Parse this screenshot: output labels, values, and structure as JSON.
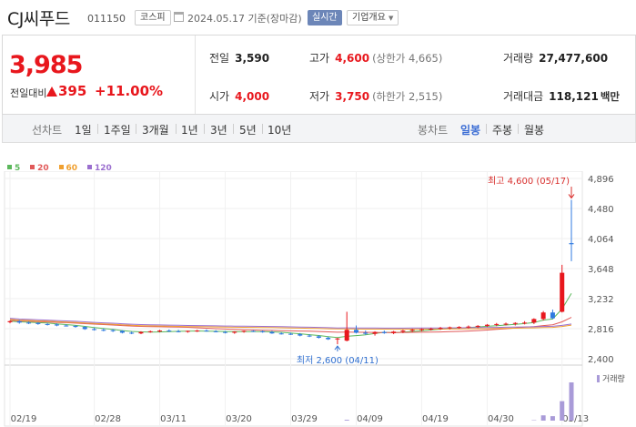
{
  "header": {
    "name": "CJ씨푸드",
    "code": "011150",
    "market": "코스피",
    "date": "2024.05.17 기준(장마감)",
    "realtime": "실시간",
    "company_info": "기업개요"
  },
  "quote": {
    "price": "3,985",
    "prev_label": "전일대비",
    "change": "395",
    "change_pct": "+11.00%",
    "fields": {
      "prev_close": {
        "label": "전일",
        "value": "3,590"
      },
      "open": {
        "label": "시가",
        "value": "4,000"
      },
      "high": {
        "label": "고가",
        "value": "4,600",
        "sub": "(상한가 4,665)"
      },
      "low": {
        "label": "저가",
        "value": "3,750",
        "sub": "(하한가 2,515)"
      },
      "volume": {
        "label": "거래량",
        "value": "27,477,600"
      },
      "amount": {
        "label": "거래대금",
        "value": "118,121",
        "unit": "백만"
      }
    }
  },
  "tabs": {
    "line_label": "선차트",
    "line_periods": [
      "1일",
      "1주일",
      "3개월",
      "1년",
      "3년",
      "5년",
      "10년"
    ],
    "candle_label": "봉차트",
    "candle_periods": [
      "일봉",
      "주봉",
      "월봉"
    ],
    "candle_active": "일봉"
  },
  "colors": {
    "up": "#e8171d",
    "down": "#2f7ae0",
    "ma5": "#5cb85c",
    "ma20": "#e15a5a",
    "ma60": "#f0a030",
    "ma120": "#9b6fcf",
    "volume": "#a99bd8"
  },
  "chart_data": {
    "type": "candlestick",
    "legend": [
      "5",
      "20",
      "60",
      "120"
    ],
    "y_ticks": [
      "4,896",
      "4,480",
      "4,064",
      "3,648",
      "3,232",
      "2,816",
      "2,400"
    ],
    "ylim": [
      2400,
      4896
    ],
    "x_ticks": [
      "02/19",
      "02/28",
      "03/11",
      "03/20",
      "03/29",
      "04/09",
      "04/19",
      "04/30",
      "05/13"
    ],
    "high_annotation": "최고 4,600 (05/17)",
    "low_annotation": "최저 2,600 (04/11)",
    "volume_label": "거래량",
    "candles": [
      [
        2905,
        2930,
        2890,
        2920
      ],
      [
        2920,
        2935,
        2885,
        2900
      ],
      [
        2900,
        2915,
        2880,
        2895
      ],
      [
        2895,
        2905,
        2870,
        2880
      ],
      [
        2880,
        2895,
        2860,
        2875
      ],
      [
        2875,
        2890,
        2850,
        2860
      ],
      [
        2860,
        2875,
        2845,
        2855
      ],
      [
        2855,
        2860,
        2830,
        2840
      ],
      [
        2840,
        2850,
        2800,
        2810
      ],
      [
        2810,
        2830,
        2790,
        2800
      ],
      [
        2800,
        2820,
        2780,
        2795
      ],
      [
        2795,
        2810,
        2770,
        2785
      ],
      [
        2785,
        2795,
        2750,
        2760
      ],
      [
        2760,
        2775,
        2740,
        2750
      ],
      [
        2750,
        2780,
        2740,
        2770
      ],
      [
        2770,
        2790,
        2760,
        2780
      ],
      [
        2780,
        2800,
        2765,
        2790
      ],
      [
        2790,
        2805,
        2770,
        2780
      ],
      [
        2780,
        2800,
        2765,
        2775
      ],
      [
        2775,
        2790,
        2760,
        2785
      ],
      [
        2785,
        2800,
        2770,
        2790
      ],
      [
        2790,
        2805,
        2775,
        2780
      ],
      [
        2780,
        2795,
        2765,
        2770
      ],
      [
        2770,
        2785,
        2750,
        2760
      ],
      [
        2760,
        2780,
        2745,
        2775
      ],
      [
        2775,
        2790,
        2760,
        2785
      ],
      [
        2785,
        2795,
        2770,
        2780
      ],
      [
        2780,
        2790,
        2760,
        2770
      ],
      [
        2770,
        2785,
        2745,
        2750
      ],
      [
        2750,
        2765,
        2735,
        2745
      ],
      [
        2745,
        2760,
        2730,
        2740
      ],
      [
        2740,
        2755,
        2710,
        2720
      ],
      [
        2720,
        2740,
        2700,
        2710
      ],
      [
        2710,
        2725,
        2680,
        2690
      ],
      [
        2690,
        2705,
        2660,
        2670
      ],
      [
        2670,
        2690,
        2600,
        2680
      ],
      [
        2650,
        3050,
        2640,
        2800
      ],
      [
        2800,
        2860,
        2750,
        2760
      ],
      [
        2760,
        2790,
        2730,
        2745
      ],
      [
        2745,
        2780,
        2720,
        2770
      ],
      [
        2770,
        2790,
        2745,
        2755
      ],
      [
        2755,
        2785,
        2740,
        2775
      ],
      [
        2775,
        2800,
        2755,
        2790
      ],
      [
        2790,
        2815,
        2770,
        2800
      ],
      [
        2800,
        2820,
        2780,
        2810
      ],
      [
        2810,
        2830,
        2790,
        2815
      ],
      [
        2815,
        2840,
        2800,
        2825
      ],
      [
        2825,
        2845,
        2805,
        2835
      ],
      [
        2835,
        2850,
        2815,
        2840
      ],
      [
        2840,
        2860,
        2820,
        2845
      ],
      [
        2845,
        2865,
        2825,
        2855
      ],
      [
        2855,
        2880,
        2840,
        2870
      ],
      [
        2870,
        2895,
        2850,
        2880
      ],
      [
        2880,
        2900,
        2860,
        2885
      ],
      [
        2885,
        2905,
        2860,
        2895
      ],
      [
        2895,
        2920,
        2875,
        2900
      ],
      [
        2900,
        2960,
        2880,
        2950
      ],
      [
        2950,
        3060,
        2930,
        3040
      ],
      [
        3040,
        3080,
        2950,
        2960
      ],
      [
        3050,
        3700,
        3040,
        3590
      ],
      [
        4000,
        4600,
        3750,
        3985
      ]
    ],
    "volumes": [
      0,
      0,
      0,
      0,
      0,
      0,
      0,
      0,
      0,
      0,
      0,
      0,
      0,
      0,
      0,
      0,
      0,
      0,
      0,
      0,
      0,
      0,
      0,
      0,
      0,
      0,
      0,
      0,
      0,
      0,
      0,
      0,
      0,
      0,
      0,
      0,
      0.6,
      0,
      0,
      0,
      0,
      0,
      0,
      0,
      0,
      0,
      0,
      0,
      0,
      0,
      0,
      0,
      0,
      0,
      0,
      0,
      0.3,
      3.8,
      3.2,
      14,
      27.5
    ]
  }
}
